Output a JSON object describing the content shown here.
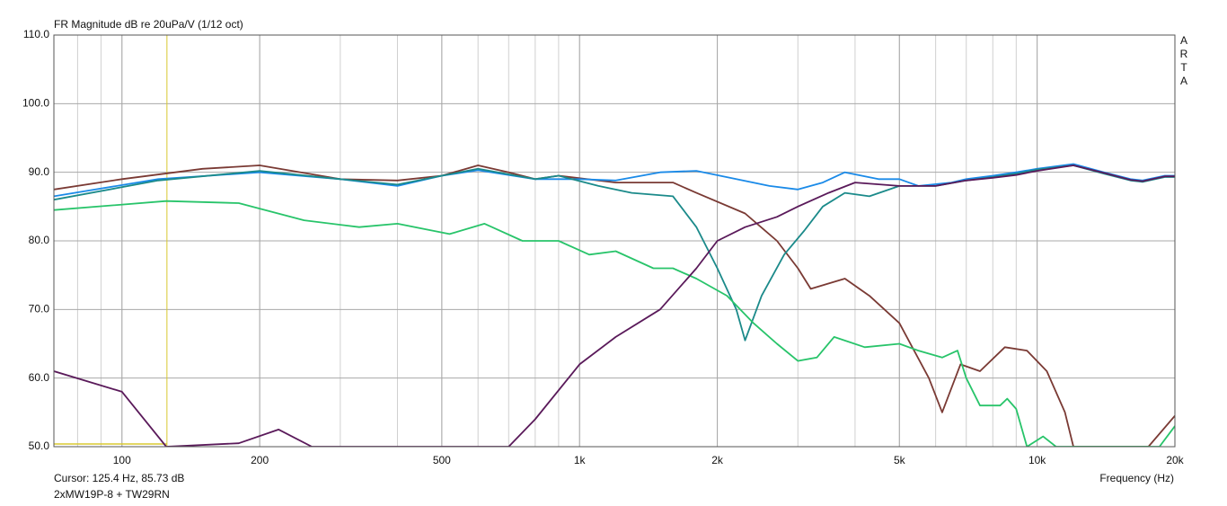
{
  "chart_data": {
    "type": "line",
    "title": "FR Magnitude dB re 20uPa/V (1/12 oct)",
    "x_label": "Frequency (Hz)",
    "watermark": [
      "A",
      "R",
      "T",
      "A"
    ],
    "cursor": {
      "x": 125.4,
      "y": 85.73,
      "label": "Cursor: 125.4 Hz, 85.73 dB",
      "color": "#d8c830"
    },
    "footer": "2xMW19P-8 + TW29RN",
    "log_x": true,
    "grid": true,
    "xlim": [
      71,
      20000
    ],
    "ylim": [
      50,
      110
    ],
    "xticks": [
      100,
      200,
      500,
      {
        "value": 1000,
        "label": "1k"
      },
      {
        "value": 2000,
        "label": "2k"
      },
      {
        "value": 5000,
        "label": "5k"
      },
      {
        "value": 10000,
        "label": "10k"
      },
      {
        "value": 20000,
        "label": "20k"
      }
    ],
    "xgrid": [
      80,
      90,
      100,
      200,
      300,
      400,
      500,
      600,
      700,
      800,
      900,
      1000,
      2000,
      3000,
      4000,
      5000,
      6000,
      7000,
      8000,
      9000,
      10000,
      20000
    ],
    "yticks": [
      {
        "value": 50,
        "label": "50.0"
      },
      {
        "value": 60,
        "label": "60.0"
      },
      {
        "value": 70,
        "label": "70.0"
      },
      {
        "value": 80,
        "label": "80.0"
      },
      {
        "value": 90,
        "label": "90.0"
      },
      {
        "value": 100,
        "label": "100.0"
      },
      {
        "value": 110,
        "label": "110.0"
      }
    ],
    "series": [
      {
        "color": "#7a3a34",
        "x": [
          71,
          100,
          150,
          200,
          300,
          400,
          500,
          600,
          700,
          800,
          900,
          1200,
          1600,
          1800,
          2300,
          2700,
          3000,
          3200,
          3800,
          4300,
          5000,
          5800,
          6200,
          6800,
          7500,
          8500,
          9500,
          10500,
          11500,
          12000,
          17500,
          20000
        ],
        "values": [
          87.5,
          89,
          90.5,
          91,
          89,
          88.8,
          89.5,
          91,
          90,
          89,
          89.5,
          88.5,
          88.5,
          87,
          84,
          80,
          76,
          73,
          74.5,
          72,
          68,
          60,
          55,
          62,
          61,
          64.5,
          64,
          61,
          55,
          50,
          50,
          54.5
        ]
      },
      {
        "color": "#1a8ae8",
        "x": [
          71,
          120,
          200,
          300,
          400,
          500,
          600,
          800,
          1000,
          1200,
          1500,
          1800,
          2200,
          2600,
          3000,
          3400,
          3800,
          4500,
          5000,
          5500,
          6500,
          7000,
          8000,
          9000,
          10000,
          12000,
          14000,
          16000,
          17000,
          19000,
          20000
        ],
        "values": [
          86.5,
          89,
          90,
          89,
          88,
          89.5,
          90.3,
          89,
          89,
          88.8,
          90,
          90.2,
          89,
          88,
          87.5,
          88.5,
          90,
          89,
          89,
          88,
          88.5,
          89,
          89.5,
          90,
          90.5,
          91.2,
          90,
          89,
          88.8,
          89.5,
          89.5
        ]
      },
      {
        "color": "#1b8a8a",
        "x": [
          71,
          120,
          200,
          300,
          400,
          500,
          600,
          800,
          900,
          1100,
          1300,
          1600,
          1800,
          2000,
          2200,
          2300,
          2500,
          2800,
          3100,
          3400,
          3800,
          4300,
          5000,
          6000,
          7000,
          8000,
          9000,
          10000,
          12000,
          14000,
          16000,
          17000,
          19000,
          20000
        ],
        "values": [
          86,
          88.8,
          90.2,
          89,
          88.2,
          89.5,
          90.5,
          89,
          89.5,
          88,
          87,
          86.5,
          82,
          76,
          70,
          65.5,
          72,
          78,
          81.5,
          85,
          87,
          86.5,
          88,
          88,
          88.8,
          89.3,
          89.8,
          90.4,
          91,
          89.8,
          88.8,
          88.6,
          89.3,
          89.3
        ]
      },
      {
        "color": "#28c46a",
        "x": [
          71,
          125,
          180,
          250,
          330,
          400,
          520,
          620,
          750,
          900,
          1050,
          1200,
          1450,
          1600,
          1800,
          2100,
          2400,
          2700,
          3000,
          3300,
          3600,
          4200,
          5000,
          5500,
          6200,
          6700,
          7000,
          7500,
          8300,
          8600,
          9000,
          9500,
          10300,
          11000,
          18500,
          20000
        ],
        "values": [
          84.5,
          85.8,
          85.5,
          83,
          82,
          82.5,
          81,
          82.5,
          80,
          80,
          78,
          78.5,
          76,
          76,
          74.5,
          72,
          68,
          65,
          62.5,
          63,
          66,
          64.5,
          65,
          64,
          63,
          64,
          60,
          56,
          56,
          57,
          55.5,
          50,
          51.5,
          50,
          50,
          53
        ]
      },
      {
        "color": "#5a1a5a",
        "x": [
          71,
          100,
          125,
          180,
          220,
          260,
          700,
          800,
          1000,
          1200,
          1500,
          1800,
          2000,
          2300,
          2700,
          3000,
          3500,
          4000,
          5000,
          6000,
          7000,
          8000,
          9000,
          10000,
          12000,
          14000,
          16000,
          17000,
          19000,
          20000
        ],
        "values": [
          61,
          58,
          50,
          50.5,
          52.5,
          50,
          50,
          54,
          62,
          66,
          70,
          76,
          80,
          82,
          83.5,
          85,
          87,
          88.5,
          88,
          88,
          88.8,
          89.2,
          89.6,
          90.2,
          91,
          89.9,
          88.9,
          88.7,
          89.4,
          89.4
        ]
      }
    ]
  }
}
